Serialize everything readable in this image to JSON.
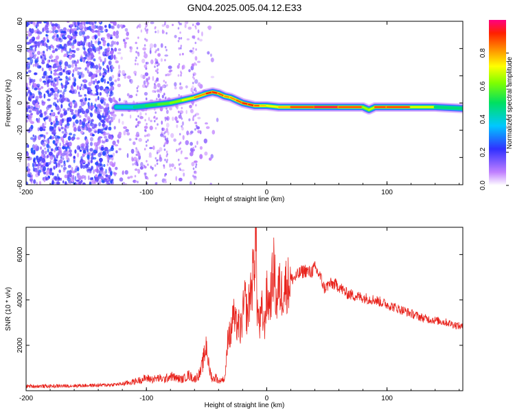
{
  "title": "GN04.2025.005.04.12.E33",
  "colors": {
    "snr_line": "#e8221b",
    "axis": "#000000",
    "background": "#ffffff"
  },
  "chart_data": [
    {
      "type": "heatmap",
      "title": "GN04.2025.005.04.12.E33",
      "xlabel": "Height of straight line (km)",
      "ylabel": "Frequency (Hz)",
      "xlim": [
        -200,
        163
      ],
      "ylim": [
        -60,
        60
      ],
      "x_ticks": [
        -200,
        -100,
        0,
        100
      ],
      "y_ticks": [
        -60,
        -40,
        -20,
        0,
        20,
        40,
        60
      ],
      "x_tick_labels": [
        "-200",
        "-100",
        "0",
        "100"
      ],
      "y_tick_labels": [
        "-60",
        "-40",
        "-20",
        "0",
        "20",
        "40",
        "60"
      ],
      "colorbar": {
        "label": "Normalized spectral amplitude",
        "range": [
          0,
          1
        ],
        "ticks": [
          0.0,
          0.2,
          0.4,
          0.6,
          0.8
        ],
        "tick_labels": [
          "0.0",
          "0.2",
          "0.4",
          "0.6",
          "0.8"
        ],
        "colormap": "rainbow"
      },
      "ridge": {
        "x": [
          -125,
          -110,
          -100,
          -90,
          -80,
          -70,
          -60,
          -50,
          -45,
          -40,
          -35,
          -30,
          -25,
          -20,
          -15,
          -10,
          -5,
          0,
          10,
          20,
          40,
          60,
          80,
          85,
          90,
          100,
          120,
          140,
          163
        ],
        "freq": [
          -3,
          -3,
          -2,
          -1,
          0,
          2,
          4,
          7,
          8,
          7,
          5,
          4,
          2,
          0,
          -1,
          -2,
          -2,
          -2,
          -3,
          -3,
          -3,
          -3,
          -3,
          -5,
          -3,
          -3,
          -3,
          -3,
          -4
        ],
        "amplitude": [
          0.35,
          0.4,
          0.5,
          0.55,
          0.6,
          0.65,
          0.75,
          0.9,
          0.95,
          0.9,
          0.85,
          0.8,
          0.85,
          0.9,
          0.95,
          0.9,
          0.85,
          0.7,
          0.75,
          0.85,
          0.95,
          0.98,
          0.8,
          0.5,
          0.85,
          0.95,
          0.85,
          0.55,
          0.4
        ]
      },
      "grid": false
    },
    {
      "type": "line",
      "xlabel": "Height of straight line (km)",
      "ylabel": "SNR (10 * v/v)",
      "xlim": [
        -200,
        163
      ],
      "ylim": [
        0,
        7200
      ],
      "x_ticks": [
        -200,
        -100,
        0,
        100
      ],
      "y_ticks": [
        2000,
        4000,
        6000
      ],
      "x_tick_labels": [
        "-200",
        "-100",
        "0",
        "100"
      ],
      "y_tick_labels": [
        "2000",
        "4000",
        "6000"
      ],
      "series": [
        {
          "color": "#e8221b",
          "x": [
            -200,
            -180,
            -160,
            -140,
            -130,
            -120,
            -110,
            -100,
            -95,
            -90,
            -85,
            -80,
            -75,
            -70,
            -65,
            -60,
            -55,
            -52,
            -50,
            -48,
            -45,
            -42,
            -40,
            -37,
            -35,
            -33,
            -32,
            -30,
            -28,
            -26,
            -24,
            -22,
            -20,
            -18,
            -16,
            -14,
            -12,
            -10,
            -9,
            -8,
            -6,
            -4,
            -2,
            0,
            2,
            4,
            6,
            8,
            10,
            12,
            14,
            16,
            18,
            20,
            24,
            28,
            32,
            36,
            40,
            44,
            48,
            52,
            56,
            60,
            66,
            72,
            80,
            90,
            100,
            110,
            120,
            130,
            140,
            150,
            163
          ],
          "y": [
            200,
            200,
            220,
            240,
            260,
            300,
            400,
            550,
            500,
            550,
            500,
            650,
            550,
            500,
            700,
            500,
            800,
            1500,
            2100,
            1000,
            500,
            600,
            400,
            500,
            500,
            1600,
            2800,
            2300,
            3500,
            2800,
            3000,
            2600,
            3300,
            4000,
            3200,
            4200,
            4800,
            6000,
            7000,
            3800,
            2800,
            3500,
            2800,
            4200,
            3800,
            4500,
            5500,
            3800,
            4600,
            4300,
            4500,
            4700,
            4700,
            4900,
            5000,
            5200,
            5300,
            5200,
            5400,
            5100,
            4500,
            4700,
            4700,
            4600,
            4300,
            4200,
            4100,
            4000,
            3800,
            3600,
            3400,
            3200,
            3100,
            3000,
            2800
          ]
        }
      ],
      "grid": false
    }
  ]
}
